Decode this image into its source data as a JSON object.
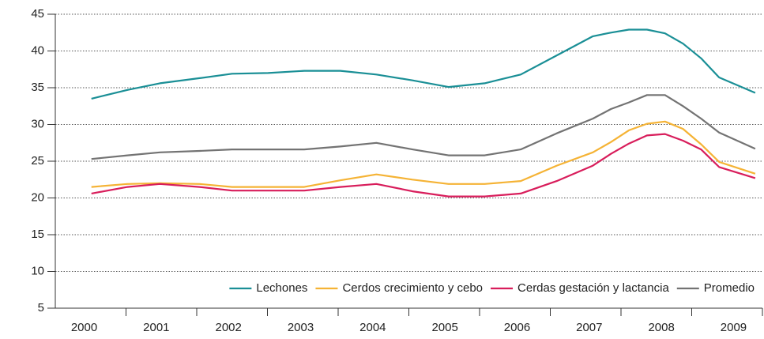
{
  "chart_data": {
    "type": "line",
    "x": [
      2000.1,
      2000.6,
      2001.05,
      2001.6,
      2002.05,
      2002.55,
      2003.05,
      2003.55,
      2004.05,
      2004.55,
      2005.05,
      2005.55,
      2006.05,
      2006.55,
      2007.05,
      2007.3,
      2007.55,
      2007.8,
      2008.05,
      2008.3,
      2008.55,
      2008.8,
      2009.3
    ],
    "series": [
      {
        "name": "Lechones",
        "color": "#1a8f96",
        "values": [
          33.5,
          34.7,
          35.6,
          36.3,
          36.9,
          37.0,
          37.3,
          37.3,
          36.8,
          36.0,
          35.1,
          35.6,
          36.8,
          39.4,
          42.0,
          42.5,
          42.9,
          42.9,
          42.4,
          41.0,
          39.0,
          36.4,
          34.3
        ]
      },
      {
        "name": "Cerdos crecimiento y cebo",
        "color": "#f5b335",
        "values": [
          21.5,
          21.9,
          22.0,
          21.9,
          21.5,
          21.5,
          21.5,
          22.4,
          23.2,
          22.5,
          21.9,
          21.9,
          22.3,
          24.4,
          26.2,
          27.6,
          29.2,
          30.1,
          30.4,
          29.4,
          27.3,
          24.9,
          23.3
        ]
      },
      {
        "name": "Cerdas gestación y lactancia",
        "color": "#d81d5b",
        "values": [
          20.6,
          21.5,
          21.9,
          21.5,
          21.0,
          21.0,
          21.0,
          21.5,
          21.9,
          20.9,
          20.2,
          20.2,
          20.6,
          22.3,
          24.4,
          26.0,
          27.4,
          28.5,
          28.7,
          27.8,
          26.6,
          24.2,
          22.7
        ]
      },
      {
        "name": "Promedio",
        "color": "#737373",
        "values": [
          25.3,
          25.8,
          26.2,
          26.4,
          26.6,
          26.6,
          26.6,
          27.0,
          27.5,
          26.6,
          25.8,
          25.8,
          26.6,
          28.8,
          30.8,
          32.1,
          33.0,
          34.0,
          34.0,
          32.5,
          30.8,
          28.9,
          26.7
        ]
      }
    ],
    "xlim": [
      1999.6,
      2009.4
    ],
    "xticks": [
      2000,
      2001,
      2002,
      2003,
      2004,
      2005,
      2006,
      2007,
      2008,
      2009
    ],
    "ylim": [
      5,
      45
    ],
    "yticks": [
      5,
      10,
      15,
      20,
      25,
      30,
      35,
      40,
      45
    ],
    "grid": true,
    "legend": "bottom-right"
  }
}
